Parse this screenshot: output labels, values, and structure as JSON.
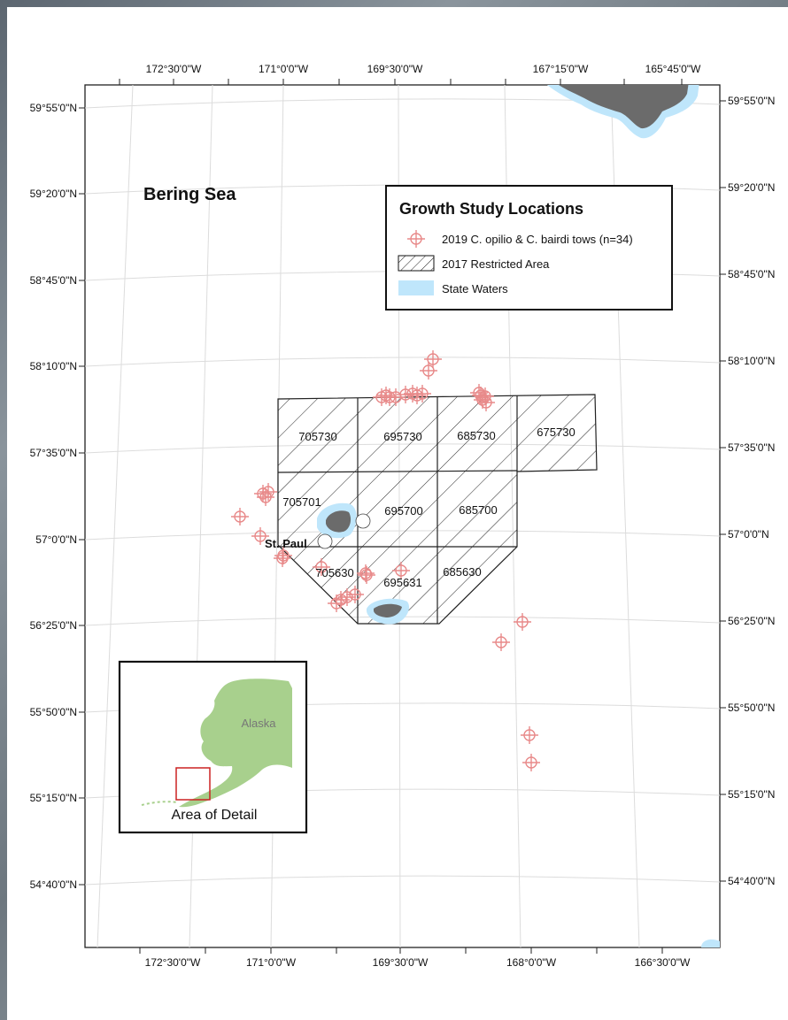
{
  "map": {
    "title": "Bering Sea",
    "top_lon_labels": [
      "172°30'0\"W",
      "171°0'0\"W",
      "169°30'0\"W",
      "167°15'0\"W",
      "165°45'0\"W"
    ],
    "bottom_lon_labels": [
      "172°30'0\"W",
      "171°0'0\"W",
      "169°30'0\"W",
      "168°0'0\"W",
      "166°30'0\"W"
    ],
    "left_lat_labels": [
      "59°55'0\"N",
      "59°20'0\"N",
      "58°45'0\"N",
      "58°10'0\"N",
      "57°35'0\"N",
      "57°0'0\"N",
      "56°25'0\"N",
      "55°50'0\"N",
      "55°15'0\"N",
      "54°40'0\"N"
    ],
    "right_lat_labels": [
      "59°55'0\"N",
      "59°20'0\"N",
      "58°45'0\"N",
      "58°10'0\"N",
      "57°35'0\"N",
      "57°0'0\"N",
      "56°25'0\"N",
      "55°50'0\"N",
      "55°15'0\"N",
      "54°40'0\"N"
    ],
    "place_label": "St. Paul",
    "cell_labels": [
      "705730",
      "695730",
      "685730",
      "675730",
      "705701",
      "695700",
      "685700",
      "705630",
      "695631",
      "685630"
    ],
    "tows_count": 34
  },
  "legend": {
    "title": "Growth Study Locations",
    "items": [
      {
        "label": "2019 C. opilio & C. bairdi tows (n=34)",
        "symbol": "tow-marker-icon"
      },
      {
        "label": "2017 Restricted Area",
        "symbol": "hatch-swatch-icon"
      },
      {
        "label": "State Waters",
        "symbol": "state-waters-swatch-icon"
      }
    ]
  },
  "inset": {
    "region_label": "Alaska",
    "caption": "Area of Detail"
  },
  "colors": {
    "land": "#6b6b6b",
    "state_waters": "#bfe6fb",
    "tow_marker": "#e88a8a",
    "alaska_fill": "#a8d08d",
    "detail_box": "#cc2222"
  }
}
